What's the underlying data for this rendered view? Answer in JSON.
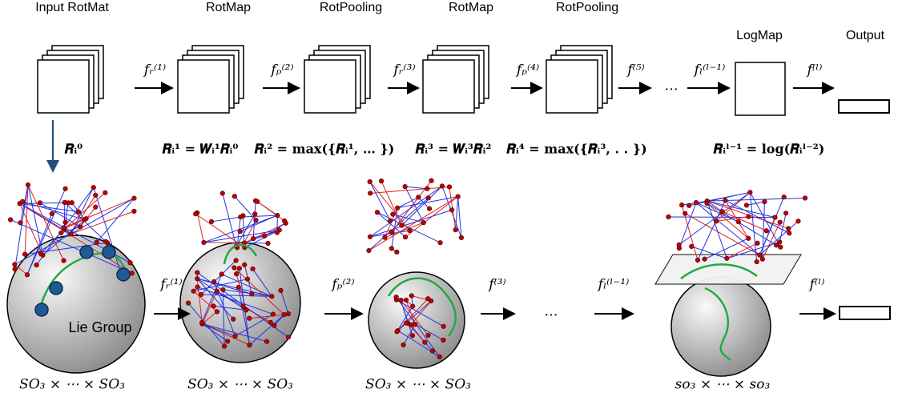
{
  "top_labels": [
    "Input RotMat",
    "RotMap",
    "RotPooling",
    "RotMap",
    "RotPooling",
    "LogMap",
    "Output"
  ],
  "top_arrows": [
    "fᵣ⁽¹⁾",
    "fₚ⁽²⁾",
    "fᵣ⁽³⁾",
    "fₚ⁽⁴⁾",
    "f⁽⁵⁾",
    "…",
    "fₗ⁽ˡ⁻¹⁾",
    "f⁽ˡ⁾"
  ],
  "equations": [
    "𝑹ᵢ⁰",
    "𝑹ᵢ¹ = 𝑾ᵢ¹𝑹ᵢ⁰",
    "𝑹ᵢ² = max({𝑹ᵢ¹, … })",
    "𝑹ᵢ³ = 𝑾ᵢ³𝑹ᵢ²",
    "𝑹ᵢ⁴ = max({𝑹ᵢ³, . . })",
    "𝑹ᵢˡ⁻¹ = log(𝑹ᵢˡ⁻²)"
  ],
  "sphere_label": "Lie Group",
  "bottom_arrows": [
    "fᵣ⁽¹⁾",
    "fₚ⁽²⁾",
    "f⁽³⁾",
    "…",
    "fₗ⁽ˡ⁻¹⁾",
    "f⁽ˡ⁾"
  ],
  "bottom_labels": [
    "SO₃ × ⋯ × SO₃",
    "SO₃ × ⋯ × SO₃",
    "SO₃ × ⋯ × SO₃",
    "so₃ × ⋯ × so₃"
  ]
}
